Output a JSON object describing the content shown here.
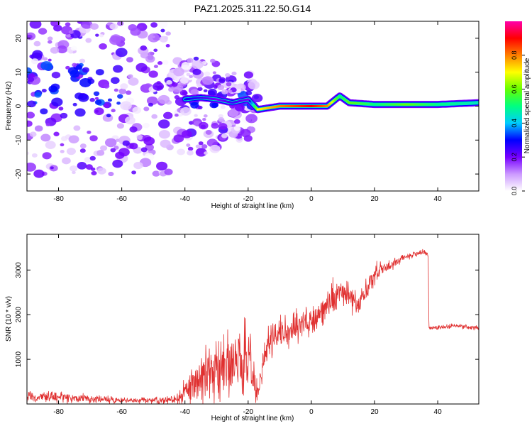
{
  "title": "PAZ1.2025.311.22.50.G14",
  "chart_data": [
    {
      "type": "heatmap",
      "xlabel": "Height of straight line (km)",
      "ylabel": "Frequency (Hz)",
      "xlim": [
        -90,
        53
      ],
      "ylim": [
        -25,
        25
      ],
      "xticks": [
        -80,
        -60,
        -40,
        -20,
        0,
        20,
        40
      ],
      "yticks": [
        -20,
        -10,
        0,
        10,
        20
      ],
      "colorbar": {
        "label": "Normalized spectral amplitude",
        "range": [
          0,
          1
        ],
        "ticks": [
          0.0,
          0.2,
          0.4,
          0.6,
          0.8
        ],
        "colormap": [
          "#ffffff",
          "#cc99ff",
          "#7700ff",
          "#0000ff",
          "#00ccff",
          "#00ff80",
          "#66ff00",
          "#ffff00",
          "#ff8000",
          "#ff0000",
          "#ff00aa"
        ]
      },
      "ridge": {
        "x": [
          -40,
          -35,
          -30,
          -25,
          -20,
          -17,
          -10,
          0,
          5,
          9,
          12,
          20,
          30,
          40,
          53
        ],
        "freq": [
          2,
          2.5,
          2,
          1,
          2,
          -1,
          0,
          0,
          0,
          3,
          1,
          0.5,
          0.5,
          0.5,
          1
        ],
        "amplitude": [
          0.3,
          0.25,
          0.2,
          0.25,
          0.2,
          0.7,
          0.8,
          0.9,
          0.8,
          0.5,
          0.6,
          0.5,
          0.6,
          0.5,
          0.45
        ]
      }
    },
    {
      "type": "line",
      "xlabel": "Height of straight line (km)",
      "ylabel": "SNR (10 * v/v)",
      "xlim": [
        -90,
        53
      ],
      "ylim": [
        0,
        3800
      ],
      "xticks": [
        -80,
        -60,
        -40,
        -20,
        0,
        20,
        40
      ],
      "yticks": [
        1000,
        2000,
        3000
      ],
      "color": "#e03030",
      "envelope": {
        "x": [
          -90,
          -80,
          -70,
          -60,
          -50,
          -42,
          -38,
          -32,
          -25,
          -20,
          -17,
          -15,
          -12,
          -8,
          -5,
          0,
          5,
          8,
          10,
          15,
          20,
          25,
          30,
          35,
          37,
          37.2,
          40,
          45,
          53
        ],
        "y_mean": [
          150,
          150,
          120,
          80,
          80,
          100,
          400,
          700,
          900,
          1000,
          200,
          1100,
          1500,
          1600,
          1700,
          1900,
          2200,
          2400,
          2500,
          2200,
          2900,
          3100,
          3300,
          3400,
          3350,
          1700,
          1700,
          1750,
          1700
        ],
        "noise": [
          150,
          150,
          120,
          80,
          80,
          150,
          600,
          800,
          1000,
          1100,
          300,
          500,
          500,
          450,
          450,
          400,
          400,
          600,
          400,
          350,
          300,
          150,
          100,
          80,
          80,
          60,
          60,
          60,
          60
        ]
      }
    }
  ]
}
